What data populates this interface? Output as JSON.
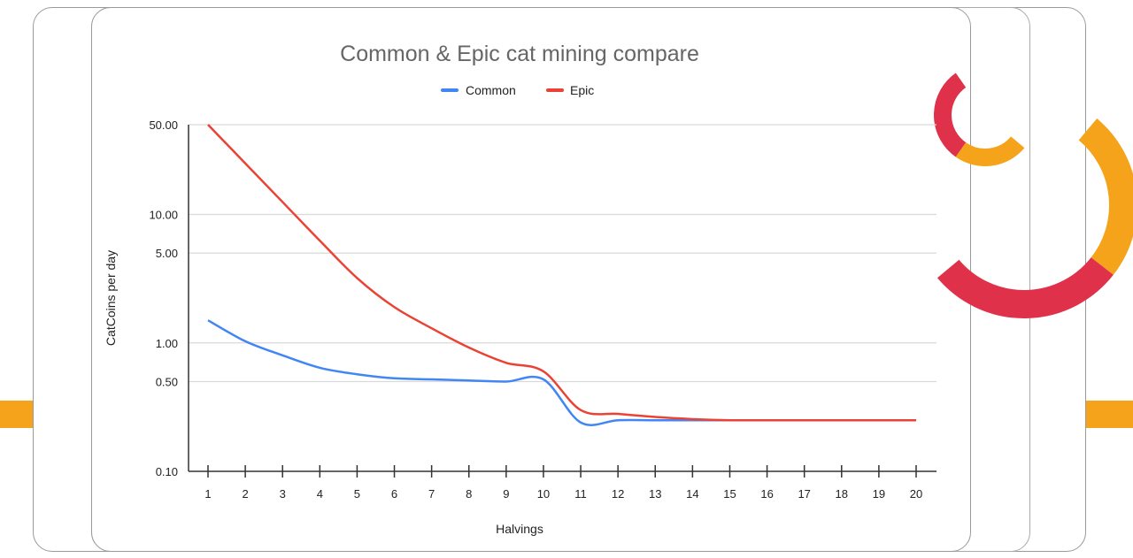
{
  "colors": {
    "common": "#4285f4",
    "epic": "#ea4335",
    "accent_orange": "#f5a31a",
    "accent_red": "#e0314b"
  },
  "chart_data": {
    "type": "line",
    "title": "Common & Epic cat mining compare",
    "xlabel": "Halvings",
    "ylabel": "CatCoins per day",
    "yscale": "log",
    "ylim": [
      0.1,
      50
    ],
    "yticks": [
      0.1,
      0.5,
      1,
      5,
      10,
      50
    ],
    "ytick_labels": [
      "0.10",
      "0.50",
      "1.00",
      "5.00",
      "10.00",
      "50.00"
    ],
    "x": [
      1,
      2,
      3,
      4,
      5,
      6,
      7,
      8,
      9,
      10,
      11,
      12,
      13,
      14,
      15,
      16,
      17,
      18,
      19,
      20
    ],
    "xtick_labels": [
      "1",
      "2",
      "3",
      "4",
      "5",
      "6",
      "7",
      "8",
      "9",
      "10",
      "11",
      "12",
      "13",
      "14",
      "15",
      "16",
      "17",
      "18",
      "19",
      "20"
    ],
    "grid": true,
    "legend_position": "top-center",
    "series": [
      {
        "name": "Common",
        "color": "#4285f4",
        "values": [
          1.5,
          1.03,
          0.8,
          0.64,
          0.57,
          0.53,
          0.52,
          0.51,
          0.5,
          0.52,
          0.24,
          0.25,
          0.25,
          0.25,
          0.25,
          0.25,
          0.25,
          0.25,
          0.25,
          0.25
        ]
      },
      {
        "name": "Epic",
        "color": "#ea4335",
        "values": [
          50,
          25,
          12.5,
          6.25,
          3.2,
          1.9,
          1.3,
          0.92,
          0.7,
          0.6,
          0.3,
          0.28,
          0.265,
          0.255,
          0.25,
          0.25,
          0.25,
          0.25,
          0.25,
          0.25
        ]
      }
    ]
  }
}
